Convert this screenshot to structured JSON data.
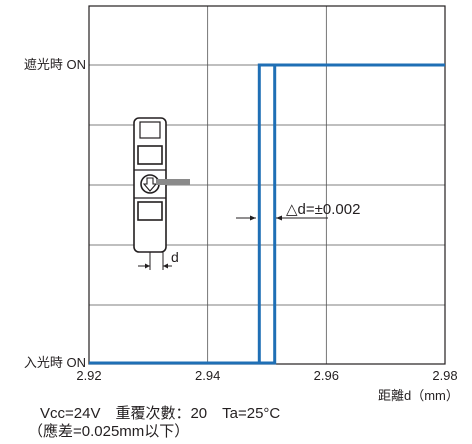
{
  "chart_data": {
    "type": "line",
    "title": "",
    "xlabel": "距離d（mm）",
    "ylabel": "",
    "xlim": [
      2.92,
      2.98
    ],
    "x_ticks": [
      "2.92",
      "2.94",
      "2.96",
      "2.98"
    ],
    "y_ticks": [
      "入光時 ON",
      "遮光時 ON"
    ],
    "grid": true,
    "series": [
      {
        "color": "#1f6fb5",
        "x": [
          2.92,
          2.9487,
          2.9487,
          2.98
        ],
        "y": [
          "入光時 ON",
          "入光時 ON",
          "遮光時 ON",
          "遮光時 ON"
        ]
      },
      {
        "color": "#1f6fb5",
        "x": [
          2.92,
          2.9513,
          2.9513,
          2.98
        ],
        "y": [
          "入光時 ON",
          "入光時 ON",
          "遮光時 ON",
          "遮光時 ON"
        ]
      }
    ],
    "annotations": [
      {
        "text": "△d=±0.002"
      },
      {
        "text": "d"
      }
    ]
  },
  "caption": {
    "line1": "Vcc=24V　重覆次數：20　Ta=25°C",
    "line2": "（應差=0.025mm以下）"
  }
}
